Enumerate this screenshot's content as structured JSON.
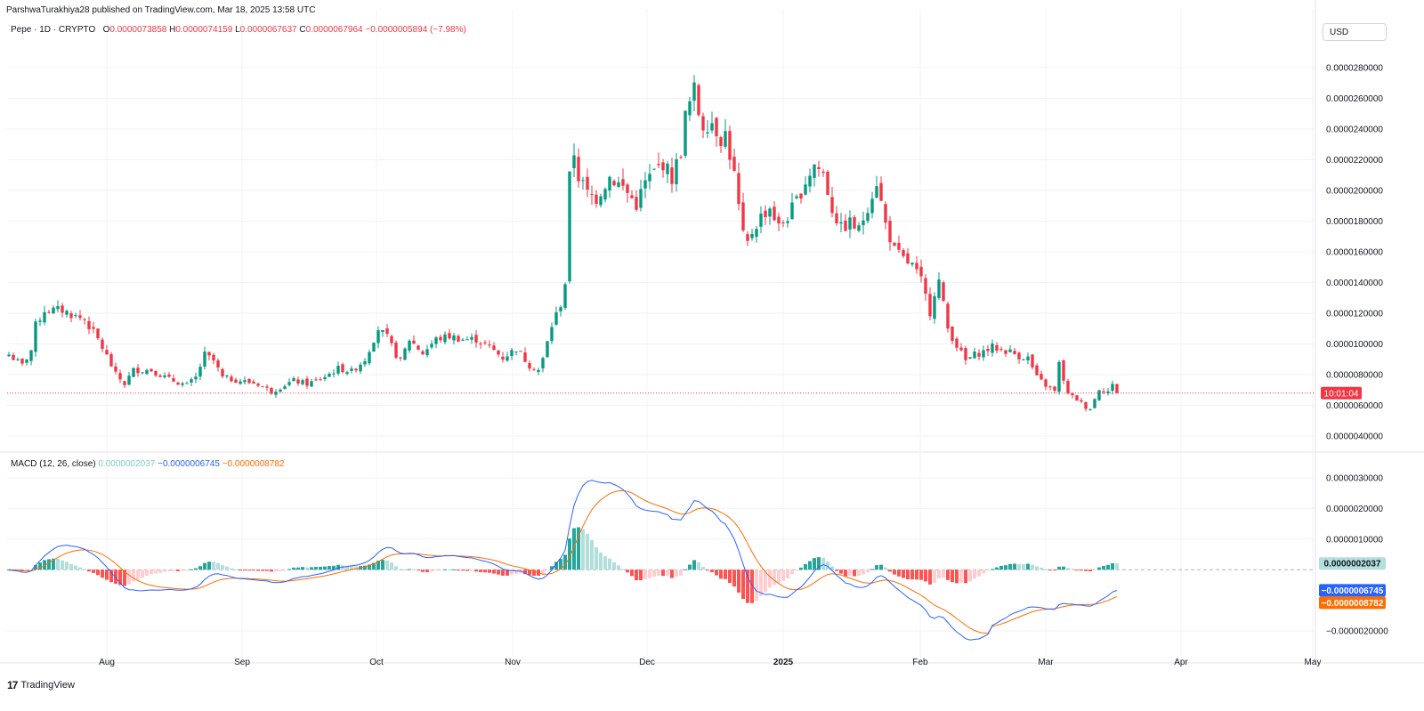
{
  "header": {
    "published": "ParshwaTurakhiya28 published on TradingView.com, Mar 18, 2025 13:58 UTC"
  },
  "legend": {
    "symbol": "Pepe · 1D · CRYPTO",
    "o_label": "O",
    "o": "0.0000073858",
    "h_label": "H",
    "h": "0.0000074159",
    "l_label": "L",
    "l": "0.0000067637",
    "c_label": "C",
    "c": "0.0000067964",
    "change": "−0.0000005894 (−7.98%)"
  },
  "currency": "USD",
  "countdown": "10:01:04",
  "macd_legend": {
    "title": "MACD (12, 26, close)",
    "hist": "0.0000002037",
    "macd": "−0.0000006745",
    "signal": "−0.0000008782"
  },
  "branding": "TradingView",
  "colors": {
    "up": "#089981",
    "down": "#f23645",
    "macd": "#2962ff",
    "signal": "#ff6d00",
    "hist_up": "#26a69a",
    "hist_up_light": "#b2dfdb",
    "hist_down": "#ff5252",
    "hist_down_light": "#ffcdd2"
  },
  "chart_data": {
    "type": "candlestick",
    "price_axis": {
      "ticks": [
        "0.0000280000",
        "0.0000260000",
        "0.0000240000",
        "0.0000220000",
        "0.0000200000",
        "0.0000180000",
        "0.0000160000",
        "0.0000140000",
        "0.0000120000",
        "0.0000100000",
        "0.0000080000",
        "0.0000060000",
        "0.0000040000"
      ],
      "ylim": [
        3.4e-06,
        3e-05
      ]
    },
    "time_axis": {
      "labels": [
        "Aug",
        "Sep",
        "Oct",
        "Nov",
        "Dec",
        "2025",
        "Feb",
        "Mar",
        "Apr",
        "May"
      ]
    },
    "macd_axis": {
      "ticks": [
        "0.0000030000",
        "0.0000020000",
        "0.0000010000",
        "−0.0000020000"
      ],
      "ylim": [
        -2.5e-06,
        3.4e-06
      ]
    },
    "last_price": 6.7964e-06,
    "macd_last": {
      "hist": 2.037e-07,
      "macd": -6.745e-07,
      "signal": -8.782e-07,
      "hist_label": "0.0000002037",
      "macd_label": "−0.0000006745",
      "signal_label": "−0.0000008782"
    },
    "close_anchors": [
      [
        0,
        9.3
      ],
      [
        3,
        8.6
      ],
      [
        5,
        9.6
      ],
      [
        6,
        11.2
      ],
      [
        8,
        12.2
      ],
      [
        12,
        12.2
      ],
      [
        15,
        11.8
      ],
      [
        17,
        11.6
      ],
      [
        20,
        10.3
      ],
      [
        22,
        9.2
      ],
      [
        24,
        8.0
      ],
      [
        26,
        7.4
      ],
      [
        28,
        8.3
      ],
      [
        32,
        8.3
      ],
      [
        36,
        7.7
      ],
      [
        40,
        7.3
      ],
      [
        42,
        7.8
      ],
      [
        44,
        9.3
      ],
      [
        46,
        8.9
      ],
      [
        48,
        7.8
      ],
      [
        52,
        7.6
      ],
      [
        56,
        7.4
      ],
      [
        59,
        6.9
      ],
      [
        61,
        7.2
      ],
      [
        64,
        7.6
      ],
      [
        67,
        7.4
      ],
      [
        70,
        7.7
      ],
      [
        74,
        8.4
      ],
      [
        77,
        8.2
      ],
      [
        80,
        9.0
      ],
      [
        83,
        11.0
      ],
      [
        85,
        10.4
      ],
      [
        87,
        9.3
      ],
      [
        88,
        8.9
      ],
      [
        90,
        10.3
      ],
      [
        93,
        9.4
      ],
      [
        96,
        10.3
      ],
      [
        99,
        10.5
      ],
      [
        102,
        10.3
      ],
      [
        105,
        10.3
      ],
      [
        108,
        9.8
      ],
      [
        111,
        9.1
      ],
      [
        114,
        9.7
      ],
      [
        117,
        8.6
      ],
      [
        119,
        8.3
      ],
      [
        120,
        9.0
      ],
      [
        122,
        11.2
      ],
      [
        124,
        12.6
      ],
      [
        125,
        14.0
      ],
      [
        126,
        20.8
      ],
      [
        127,
        22.5
      ],
      [
        128,
        20.9
      ],
      [
        130,
        19.8
      ],
      [
        132,
        19.5
      ],
      [
        135,
        20.9
      ],
      [
        138,
        20.2
      ],
      [
        141,
        19.1
      ],
      [
        143,
        20.5
      ],
      [
        145,
        21.2
      ],
      [
        147,
        21.8
      ],
      [
        149,
        20.8
      ],
      [
        151,
        22.6
      ],
      [
        152,
        24.8
      ],
      [
        154,
        26.5
      ],
      [
        155,
        25.1
      ],
      [
        156,
        24.3
      ],
      [
        158,
        24.5
      ],
      [
        160,
        23.4
      ],
      [
        161,
        23.7
      ],
      [
        163,
        21.0
      ],
      [
        164,
        18.9
      ],
      [
        165,
        17.0
      ],
      [
        166,
        16.5
      ],
      [
        167,
        17.3
      ],
      [
        169,
        18.3
      ],
      [
        171,
        18.9
      ],
      [
        173,
        17.6
      ],
      [
        175,
        18.3
      ],
      [
        177,
        19.3
      ],
      [
        179,
        20.6
      ],
      [
        181,
        21.7
      ],
      [
        183,
        21.1
      ],
      [
        185,
        18.8
      ],
      [
        187,
        17.5
      ],
      [
        189,
        17.9
      ],
      [
        191,
        17.4
      ],
      [
        193,
        19.0
      ],
      [
        195,
        20.6
      ],
      [
        197,
        17.8
      ],
      [
        199,
        16.1
      ],
      [
        201,
        15.5
      ],
      [
        203,
        15.1
      ],
      [
        205,
        14.1
      ],
      [
        207,
        12.1
      ],
      [
        208,
        13.4
      ],
      [
        209,
        14.1
      ],
      [
        211,
        11.0
      ],
      [
        213,
        9.9
      ],
      [
        215,
        8.9
      ],
      [
        217,
        9.3
      ],
      [
        219,
        9.5
      ],
      [
        221,
        9.8
      ],
      [
        223,
        9.6
      ],
      [
        225,
        9.5
      ],
      [
        227,
        9.2
      ],
      [
        229,
        9.1
      ],
      [
        231,
        7.8
      ],
      [
        233,
        7.3
      ],
      [
        235,
        6.9
      ],
      [
        236,
        8.7
      ],
      [
        238,
        6.7
      ],
      [
        240,
        6.4
      ],
      [
        242,
        5.9
      ],
      [
        243,
        5.8
      ],
      [
        244,
        6.4
      ],
      [
        245,
        7.1
      ],
      [
        247,
        6.9
      ],
      [
        248,
        7.3
      ],
      [
        249,
        6.8
      ]
    ],
    "candle_count": 250
  }
}
